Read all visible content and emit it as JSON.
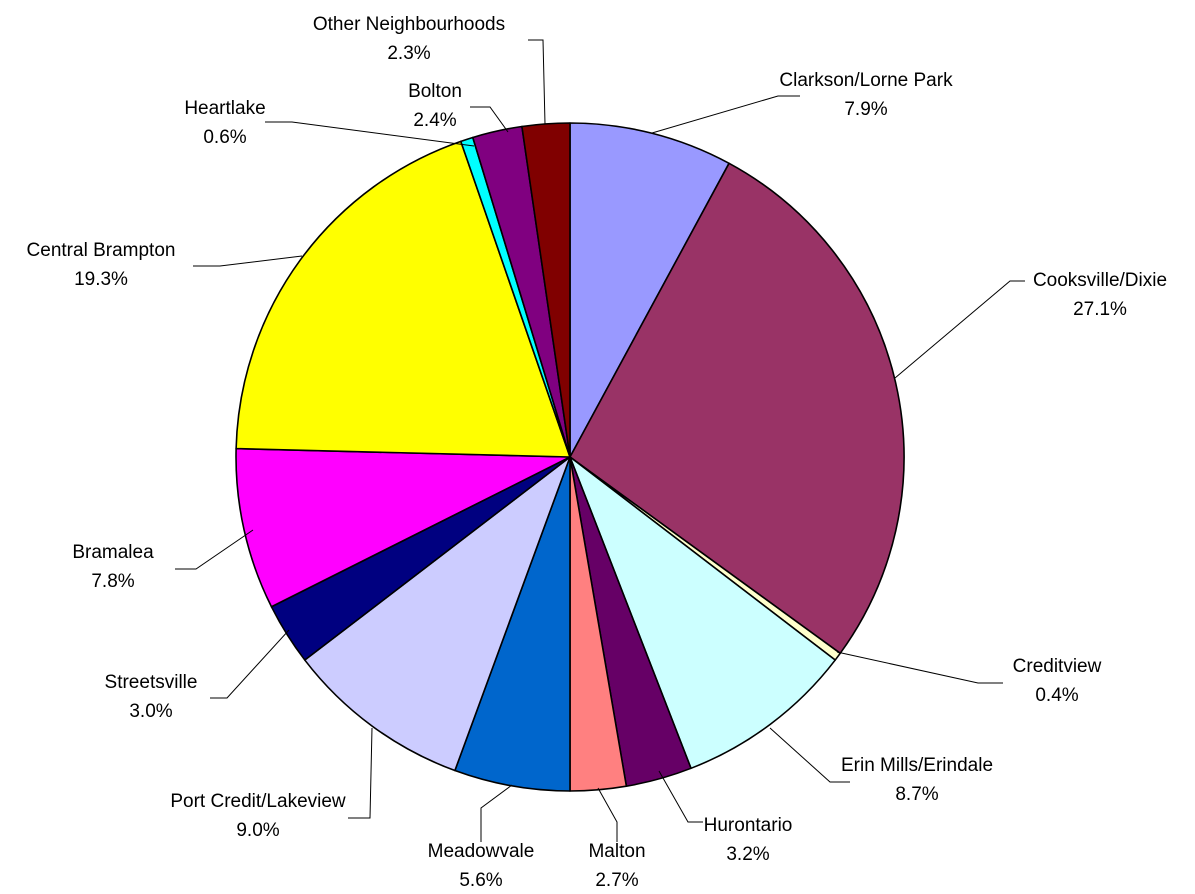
{
  "chart_data": {
    "type": "pie",
    "start_angle": "12 o'clock",
    "direction": "clockwise",
    "legend": "none",
    "slices": [
      {
        "name": "Clarkson/Lorne Park",
        "value": 7.9,
        "label": "7.9%",
        "color": "#9999FF"
      },
      {
        "name": "Cooksville/Dixie",
        "value": 27.1,
        "label": "27.1%",
        "color": "#993366"
      },
      {
        "name": "Creditview",
        "value": 0.4,
        "label": "0.4%",
        "color": "#FFFFCC"
      },
      {
        "name": "Erin Mills/Erindale",
        "value": 8.7,
        "label": "8.7%",
        "color": "#CCFFFF"
      },
      {
        "name": "Hurontario",
        "value": 3.2,
        "label": "3.2%",
        "color": "#660066"
      },
      {
        "name": "Malton",
        "value": 2.7,
        "label": "2.7%",
        "color": "#FF8080"
      },
      {
        "name": "Meadowvale",
        "value": 5.6,
        "label": "5.6%",
        "color": "#0066CC"
      },
      {
        "name": "Port Credit/Lakeview",
        "value": 9.0,
        "label": "9.0%",
        "color": "#CCCCFF"
      },
      {
        "name": "Streetsville",
        "value": 3.0,
        "label": "3.0%",
        "color": "#000080"
      },
      {
        "name": "Bramalea",
        "value": 7.8,
        "label": "7.8%",
        "color": "#FF00FF"
      },
      {
        "name": "Central Brampton",
        "value": 19.3,
        "label": "19.3%",
        "color": "#FFFF00"
      },
      {
        "name": "Heartlake",
        "value": 0.6,
        "label": "0.6%",
        "color": "#00FFFF"
      },
      {
        "name": "Bolton",
        "value": 2.4,
        "label": "2.4%",
        "color": "#800080"
      },
      {
        "name": "Other Neighbourhoods",
        "value": 2.3,
        "label": "2.3%",
        "color": "#800000"
      }
    ]
  }
}
